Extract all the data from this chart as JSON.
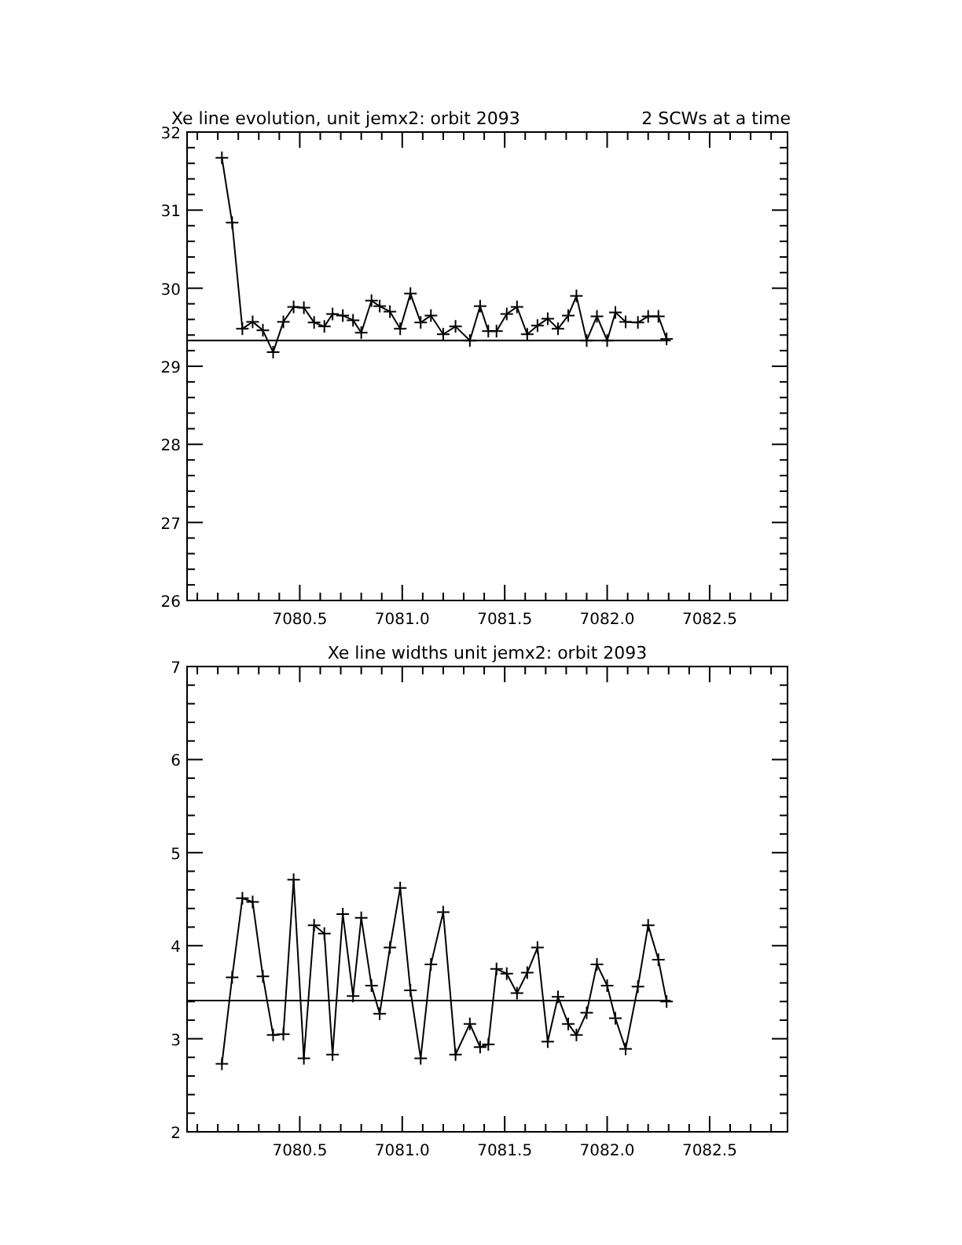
{
  "chart_data": [
    {
      "type": "line",
      "title": "Xe line evolution, unit jemx2: orbit 2093",
      "subtitle": "2 SCWs at a time",
      "marker": "cross",
      "line_style": "solid",
      "xlim": [
        7079.95,
        7082.88
      ],
      "ylim": [
        26,
        32
      ],
      "xticks": [
        {
          "value": 7080.0,
          "label": null
        },
        {
          "value": 7080.1,
          "label": null
        },
        {
          "value": 7080.2,
          "label": null
        },
        {
          "value": 7080.3,
          "label": null
        },
        {
          "value": 7080.4,
          "label": null
        },
        {
          "value": 7080.5,
          "label": "7080.5"
        },
        {
          "value": 7080.6,
          "label": null
        },
        {
          "value": 7080.7,
          "label": null
        },
        {
          "value": 7080.8,
          "label": null
        },
        {
          "value": 7080.9,
          "label": null
        },
        {
          "value": 7081.0,
          "label": "7081.0"
        },
        {
          "value": 7081.1,
          "label": null
        },
        {
          "value": 7081.2,
          "label": null
        },
        {
          "value": 7081.3,
          "label": null
        },
        {
          "value": 7081.4,
          "label": null
        },
        {
          "value": 7081.5,
          "label": "7081.5"
        },
        {
          "value": 7081.6,
          "label": null
        },
        {
          "value": 7081.7,
          "label": null
        },
        {
          "value": 7081.8,
          "label": null
        },
        {
          "value": 7081.9,
          "label": null
        },
        {
          "value": 7082.0,
          "label": "7082.0"
        },
        {
          "value": 7082.1,
          "label": null
        },
        {
          "value": 7082.2,
          "label": null
        },
        {
          "value": 7082.3,
          "label": null
        },
        {
          "value": 7082.4,
          "label": null
        },
        {
          "value": 7082.5,
          "label": "7082.5"
        },
        {
          "value": 7082.6,
          "label": null
        },
        {
          "value": 7082.7,
          "label": null
        },
        {
          "value": 7082.8,
          "label": null
        }
      ],
      "yticks": [
        26,
        {
          "value": 26.2,
          "label": null
        },
        {
          "value": 26.4,
          "label": null
        },
        {
          "value": 26.6,
          "label": null
        },
        {
          "value": 26.8,
          "label": null
        },
        27,
        {
          "value": 27.2,
          "label": null
        },
        {
          "value": 27.4,
          "label": null
        },
        {
          "value": 27.6,
          "label": null
        },
        {
          "value": 27.8,
          "label": null
        },
        28,
        {
          "value": 28.2,
          "label": null
        },
        {
          "value": 28.4,
          "label": null
        },
        {
          "value": 28.6,
          "label": null
        },
        {
          "value": 28.8,
          "label": null
        },
        29,
        {
          "value": 29.2,
          "label": null
        },
        {
          "value": 29.4,
          "label": null
        },
        {
          "value": 29.6,
          "label": null
        },
        {
          "value": 29.8,
          "label": null
        },
        30,
        {
          "value": 30.2,
          "label": null
        },
        {
          "value": 30.4,
          "label": null
        },
        {
          "value": 30.6,
          "label": null
        },
        {
          "value": 30.8,
          "label": null
        },
        31,
        {
          "value": 31.2,
          "label": null
        },
        {
          "value": 31.4,
          "label": null
        },
        {
          "value": 31.6,
          "label": null
        },
        {
          "value": 31.8,
          "label": null
        },
        32
      ],
      "series": [
        {
          "color": "#000000",
          "x": [
            7080.12,
            7080.17,
            7080.22,
            7080.27,
            7080.32,
            7080.37,
            7080.42,
            7080.47,
            7080.52,
            7080.57,
            7080.62,
            7080.66,
            7080.71,
            7080.76,
            7080.8,
            7080.85,
            7080.89,
            7080.94,
            7080.99,
            7081.04,
            7081.09,
            7081.14,
            7081.2,
            7081.26,
            7081.33,
            7081.38,
            7081.42,
            7081.46,
            7081.51,
            7081.56,
            7081.61,
            7081.66,
            7081.71,
            7081.76,
            7081.81,
            7081.85,
            7081.9,
            7081.95,
            7082.0,
            7082.04,
            7082.09,
            7082.15,
            7082.2,
            7082.25,
            7082.29
          ],
          "values": [
            31.67,
            30.84,
            29.48,
            29.57,
            29.46,
            29.18,
            29.57,
            29.76,
            29.75,
            29.56,
            29.51,
            29.67,
            29.65,
            29.59,
            29.43,
            29.84,
            29.77,
            29.7,
            29.48,
            29.93,
            29.56,
            29.65,
            29.41,
            29.51,
            29.33,
            29.77,
            29.45,
            29.45,
            29.67,
            29.76,
            29.41,
            29.52,
            29.61,
            29.48,
            29.65,
            29.9,
            29.33,
            29.64,
            29.33,
            29.69,
            29.57,
            29.56,
            29.64,
            29.64,
            29.35
          ]
        },
        {
          "color": "#000000",
          "marker": "none",
          "x": [
            7079.95,
            7082.31
          ],
          "values": [
            29.33,
            29.33
          ]
        }
      ]
    },
    {
      "type": "line",
      "title": "Xe line widths unit jemx2: orbit 2093",
      "marker": "cross",
      "line_style": "solid",
      "xlim": [
        7079.95,
        7082.88
      ],
      "ylim": [
        2,
        7
      ],
      "xticks": [
        {
          "value": 7080.0,
          "label": null
        },
        {
          "value": 7080.1,
          "label": null
        },
        {
          "value": 7080.2,
          "label": null
        },
        {
          "value": 7080.3,
          "label": null
        },
        {
          "value": 7080.4,
          "label": null
        },
        {
          "value": 7080.5,
          "label": "7080.5"
        },
        {
          "value": 7080.6,
          "label": null
        },
        {
          "value": 7080.7,
          "label": null
        },
        {
          "value": 7080.8,
          "label": null
        },
        {
          "value": 7080.9,
          "label": null
        },
        {
          "value": 7081.0,
          "label": "7081.0"
        },
        {
          "value": 7081.1,
          "label": null
        },
        {
          "value": 7081.2,
          "label": null
        },
        {
          "value": 7081.3,
          "label": null
        },
        {
          "value": 7081.4,
          "label": null
        },
        {
          "value": 7081.5,
          "label": "7081.5"
        },
        {
          "value": 7081.6,
          "label": null
        },
        {
          "value": 7081.7,
          "label": null
        },
        {
          "value": 7081.8,
          "label": null
        },
        {
          "value": 7081.9,
          "label": null
        },
        {
          "value": 7082.0,
          "label": "7082.0"
        },
        {
          "value": 7082.1,
          "label": null
        },
        {
          "value": 7082.2,
          "label": null
        },
        {
          "value": 7082.3,
          "label": null
        },
        {
          "value": 7082.4,
          "label": null
        },
        {
          "value": 7082.5,
          "label": "7082.5"
        },
        {
          "value": 7082.6,
          "label": null
        },
        {
          "value": 7082.7,
          "label": null
        },
        {
          "value": 7082.8,
          "label": null
        }
      ],
      "yticks": [
        2,
        {
          "value": 2.2,
          "label": null
        },
        {
          "value": 2.4,
          "label": null
        },
        {
          "value": 2.6,
          "label": null
        },
        {
          "value": 2.8,
          "label": null
        },
        3,
        {
          "value": 3.2,
          "label": null
        },
        {
          "value": 3.4,
          "label": null
        },
        {
          "value": 3.6,
          "label": null
        },
        {
          "value": 3.8,
          "label": null
        },
        4,
        {
          "value": 4.2,
          "label": null
        },
        {
          "value": 4.4,
          "label": null
        },
        {
          "value": 4.6,
          "label": null
        },
        {
          "value": 4.8,
          "label": null
        },
        5,
        {
          "value": 5.2,
          "label": null
        },
        {
          "value": 5.4,
          "label": null
        },
        {
          "value": 5.6,
          "label": null
        },
        {
          "value": 5.8,
          "label": null
        },
        6,
        {
          "value": 6.2,
          "label": null
        },
        {
          "value": 6.4,
          "label": null
        },
        {
          "value": 6.6,
          "label": null
        },
        {
          "value": 6.8,
          "label": null
        },
        7
      ],
      "series": [
        {
          "color": "#000000",
          "x": [
            7080.12,
            7080.17,
            7080.22,
            7080.27,
            7080.32,
            7080.37,
            7080.42,
            7080.47,
            7080.52,
            7080.57,
            7080.62,
            7080.66,
            7080.71,
            7080.76,
            7080.8,
            7080.85,
            7080.89,
            7080.94,
            7080.99,
            7081.04,
            7081.09,
            7081.14,
            7081.2,
            7081.26,
            7081.33,
            7081.38,
            7081.42,
            7081.46,
            7081.51,
            7081.56,
            7081.61,
            7081.66,
            7081.71,
            7081.76,
            7081.81,
            7081.85,
            7081.9,
            7081.95,
            7082.0,
            7082.04,
            7082.09,
            7082.15,
            7082.2,
            7082.25,
            7082.29
          ],
          "values": [
            2.73,
            3.66,
            4.51,
            4.47,
            3.67,
            3.04,
            3.05,
            4.71,
            2.79,
            4.22,
            4.13,
            2.83,
            4.34,
            3.46,
            4.3,
            3.57,
            3.27,
            3.98,
            4.62,
            3.52,
            2.79,
            3.8,
            4.36,
            2.83,
            3.16,
            2.91,
            2.94,
            3.75,
            3.7,
            3.49,
            3.71,
            3.98,
            2.97,
            3.45,
            3.16,
            3.04,
            3.28,
            3.8,
            3.57,
            3.22,
            2.89,
            3.56,
            4.22,
            3.85,
            3.4
          ]
        },
        {
          "color": "#000000",
          "marker": "none",
          "x": [
            7079.95,
            7082.31
          ],
          "values": [
            3.41,
            3.41
          ]
        }
      ]
    }
  ]
}
